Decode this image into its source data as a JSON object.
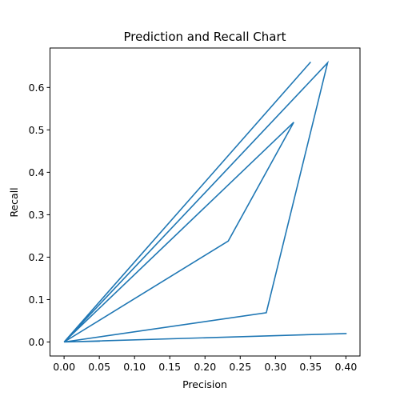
{
  "chart_data": {
    "type": "line",
    "title": "Prediction and Recall Chart",
    "xlabel": "Precision",
    "ylabel": "Recall",
    "xlim": [
      -0.02,
      0.42
    ],
    "ylim": [
      -0.033,
      0.693
    ],
    "x_ticks": [
      0.0,
      0.05,
      0.1,
      0.15,
      0.2,
      0.25,
      0.3,
      0.35,
      0.4
    ],
    "x_tick_labels": [
      "0.00",
      "0.05",
      "0.10",
      "0.15",
      "0.20",
      "0.25",
      "0.30",
      "0.35",
      "0.40"
    ],
    "y_ticks": [
      0.0,
      0.1,
      0.2,
      0.3,
      0.4,
      0.5,
      0.6
    ],
    "y_tick_labels": [
      "0.0",
      "0.1",
      "0.2",
      "0.3",
      "0.4",
      "0.5",
      "0.6"
    ],
    "grid": false,
    "series": [
      {
        "color": "#1f77b4",
        "points": [
          [
            0.051,
            0.002
          ],
          [
            0.0,
            0.0
          ],
          [
            0.401,
            0.02
          ],
          [
            0.0,
            0.0
          ],
          [
            0.287,
            0.069
          ],
          [
            0.374,
            0.658
          ],
          [
            0.0,
            0.0
          ],
          [
            0.233,
            0.238
          ],
          [
            0.326,
            0.518
          ],
          [
            0.0,
            0.0
          ],
          [
            0.35,
            0.66
          ]
        ]
      }
    ]
  }
}
